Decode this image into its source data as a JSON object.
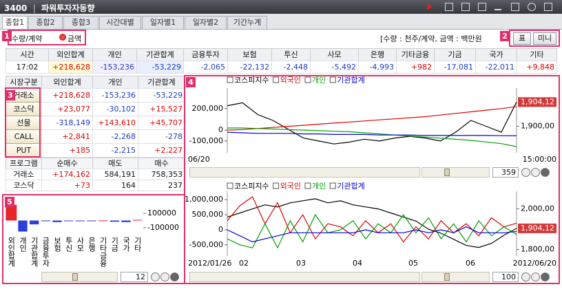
{
  "window": {
    "code": "3400",
    "title": "파워투자자동향"
  },
  "tabs": [
    "종합1",
    "종합2",
    "종합3",
    "시간대별",
    "일자별1",
    "일자별2",
    "기간누계"
  ],
  "markers": [
    "1",
    "2",
    "3",
    "4",
    "5"
  ],
  "options": {
    "quantity": "수량/계약",
    "amount": "금액"
  },
  "unit_note": "[수량 : 천주/계약, 금액 : 백만원",
  "buttons": [
    "표",
    "미니"
  ],
  "summary_table": {
    "headers": [
      "시간",
      "외인합계",
      "개인",
      "기관합계",
      "금융투자",
      "보험",
      "투신",
      "사모",
      "은행",
      "기타금융",
      "기금",
      "국가",
      "기타"
    ],
    "rows": [
      [
        "17:02",
        "+218,628",
        "-153,236",
        "-53,229",
        "-2,065",
        "-22,132",
        "-2,448",
        "-5,492",
        "-4,993",
        "+982",
        "-17,081",
        "-22,011",
        "+9,848"
      ]
    ]
  },
  "market_table": {
    "headers": [
      "시장구분",
      "외인합계",
      "개인",
      "기관합계"
    ],
    "rows": [
      [
        "거래소",
        "+218,628",
        "-153,236",
        "-53,229"
      ],
      [
        "코스닥",
        "+23,077",
        "-30,102",
        "+15,527"
      ],
      [
        "선물",
        "-318,149",
        "+143,610",
        "+45,707"
      ],
      [
        "CALL",
        "+2,841",
        "-2,268",
        "-278"
      ],
      [
        "PUT",
        "+185",
        "-2,215",
        "+2,227"
      ]
    ]
  },
  "program_table": {
    "headers": [
      "프로그램",
      "순매수",
      "매도",
      "매수"
    ],
    "rows": [
      [
        "거래소",
        "+174,162",
        "584,191",
        "758,353"
      ],
      [
        "코스닥",
        "+73",
        "164",
        "237"
      ]
    ]
  },
  "chart_data": [
    {
      "type": "line",
      "series": [
        {
          "name": "코스피지수",
          "color": "#000000",
          "axis": "y2",
          "values": [
            1903.5,
            1904,
            1902,
            1901,
            1899.5,
            1898,
            1897.5,
            1897,
            1897.3,
            1897.8,
            1897.5,
            1898,
            1898.3,
            1898,
            1897.5,
            1899,
            1901,
            1900,
            1899,
            1904.12
          ]
        },
        {
          "name": "외국인",
          "color": "#e00000",
          "values": [
            0,
            5000,
            15000,
            25000,
            35000,
            45000,
            55000,
            65000,
            75000,
            85000,
            95000,
            105000,
            115000,
            125000,
            140000,
            155000,
            170000,
            185000,
            200000,
            218628
          ]
        },
        {
          "name": "개인",
          "color": "#00a000",
          "values": [
            20000,
            20000,
            15000,
            10000,
            5000,
            0,
            -5000,
            -10000,
            -15000,
            -25000,
            -35000,
            -45000,
            -55000,
            -65000,
            -75000,
            -85000,
            -95000,
            -110000,
            -125000,
            -153236
          ]
        },
        {
          "name": "기관합계",
          "color": "#0000e0",
          "values": [
            -20000,
            -25000,
            -30000,
            -30000,
            -30000,
            -35000,
            -35000,
            -40000,
            -40000,
            -40000,
            -45000,
            -45000,
            -45000,
            -50000,
            -50000,
            -50000,
            -50000,
            -50000,
            -52000,
            -53229
          ]
        }
      ],
      "ylim": [
        -210000,
        390000
      ],
      "yticks": [
        {
          "value": 200000,
          "label": "200,000"
        },
        0,
        {
          "value": -100000,
          "label": "-100,000"
        }
      ],
      "y2lim": [
        1895.5,
        1906.5
      ],
      "y2ticks": [
        {
          "value": 1900,
          "label": "1,900,00"
        }
      ],
      "current_label": {
        "value": 1904.12,
        "label": "1,904,12"
      },
      "x_labels": [
        "06/20",
        "15:00:00"
      ]
    },
    {
      "type": "line",
      "series": [
        {
          "name": "코스피지수",
          "color": "#000000",
          "axis": "y2",
          "values": [
            1960,
            1980,
            2000,
            2020,
            2010,
            2030,
            2040,
            2050,
            2030,
            2040,
            2020,
            2010,
            2000,
            1980,
            1960,
            1940,
            1900,
            1880,
            1850,
            1820,
            1810,
            1830,
            1870,
            1904.12
          ]
        },
        {
          "name": "외국인",
          "color": "#e00000",
          "values": [
            300000,
            800000,
            1100000,
            200000,
            900000,
            -100000,
            500000,
            -300000,
            200000,
            100000,
            -200000,
            300000,
            -100000,
            200000,
            -400000,
            100000,
            -300000,
            300000,
            -100000,
            200000,
            -200000,
            400000,
            100000,
            218628
          ]
        },
        {
          "name": "개인",
          "color": "#00a000",
          "values": [
            -300000,
            -500000,
            -600000,
            200000,
            -600000,
            300000,
            -400000,
            500000,
            -100000,
            0,
            300000,
            -300000,
            200000,
            -100000,
            500000,
            -100000,
            400000,
            -300000,
            200000,
            -400000,
            300000,
            -200000,
            100000,
            -153236
          ]
        },
        {
          "name": "기관합계",
          "color": "#0000e0",
          "values": [
            0,
            -200000,
            -400000,
            -300000,
            -200000,
            -100000,
            -100000,
            -100000,
            -100000,
            -100000,
            -100000,
            0,
            -100000,
            -100000,
            -100000,
            0,
            -100000,
            0,
            -100000,
            100000,
            -100000,
            -100000,
            -100000,
            -53229
          ]
        }
      ],
      "ylim": [
        -870000,
        1280000
      ],
      "yticks": [
        {
          "value": 1000000,
          "label": "1,000,000"
        },
        {
          "value": 500000,
          "label": "500,000"
        },
        0,
        {
          "value": -500000,
          "label": "-500,000"
        }
      ],
      "y2lim": [
        1768,
        2087
      ],
      "y2ticks": [
        {
          "value": 2000,
          "label": "2,000,00"
        },
        {
          "value": 1800,
          "label": "1,800,00"
        }
      ],
      "current_label": {
        "value": 1904.12,
        "label": "1,904,12"
      },
      "x_labels": [
        "2012/01/26",
        "02",
        "03",
        "04",
        "05",
        "06",
        "2012/06/20"
      ]
    },
    {
      "type": "bar",
      "categories": [
        "외인합계",
        "개인",
        "기관합계",
        "금융투자",
        "보험",
        "투신",
        "사모",
        "은행",
        "기타금융",
        "기금",
        "국가",
        "기타"
      ],
      "values": [
        218628,
        -153236,
        -53229,
        -2065,
        -22132,
        -2448,
        -5492,
        -4993,
        982,
        -17081,
        -22011,
        9848
      ],
      "ylim": [
        -186000,
        319000
      ],
      "yticks": [
        100000,
        -100000
      ],
      "positive_color": "#e8262a",
      "negative_color": "#2b3fd8"
    }
  ],
  "spinners": [
    "359",
    "100",
    "12"
  ]
}
